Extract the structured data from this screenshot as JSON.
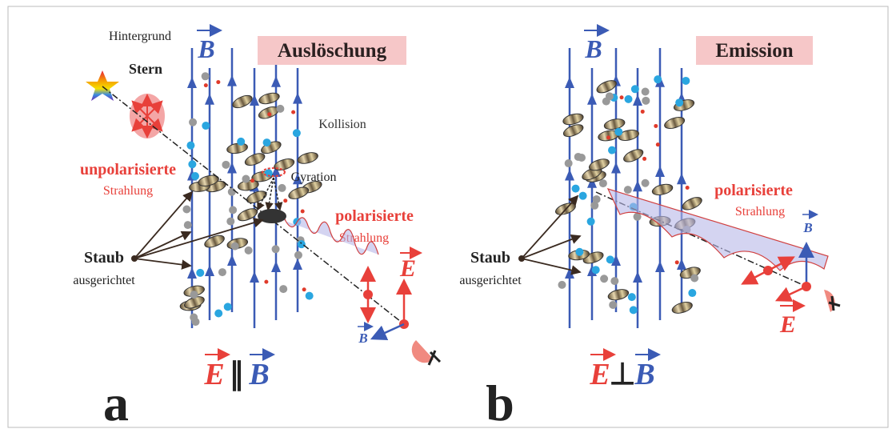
{
  "panels": [
    {
      "label": "a",
      "title": "Auslöschung",
      "field": "B",
      "background": "Hintergrund",
      "star": "Stern",
      "unpolarized": "unpolarisierte",
      "unpolarized_sub": "Strahlung",
      "collision": "Kollision",
      "gyration": "Gyration",
      "polarized": "polarisierte",
      "polarized_sub": "Strahlung",
      "dust": "Staub",
      "dust_sub": "ausgerichtet",
      "e_label": "E",
      "b_small": "B",
      "relation": {
        "left": "E",
        "symbol": "∥",
        "right": "B"
      }
    },
    {
      "label": "b",
      "title": "Emission",
      "field": "B",
      "polarized": "polarisierte",
      "polarized_sub": "Strahlung",
      "dust": "Staub",
      "dust_sub": "ausgerichtet",
      "e_label": "E",
      "b_small": "B",
      "relation": {
        "left": "E",
        "symbol": "⊥",
        "right": "B"
      }
    }
  ]
}
